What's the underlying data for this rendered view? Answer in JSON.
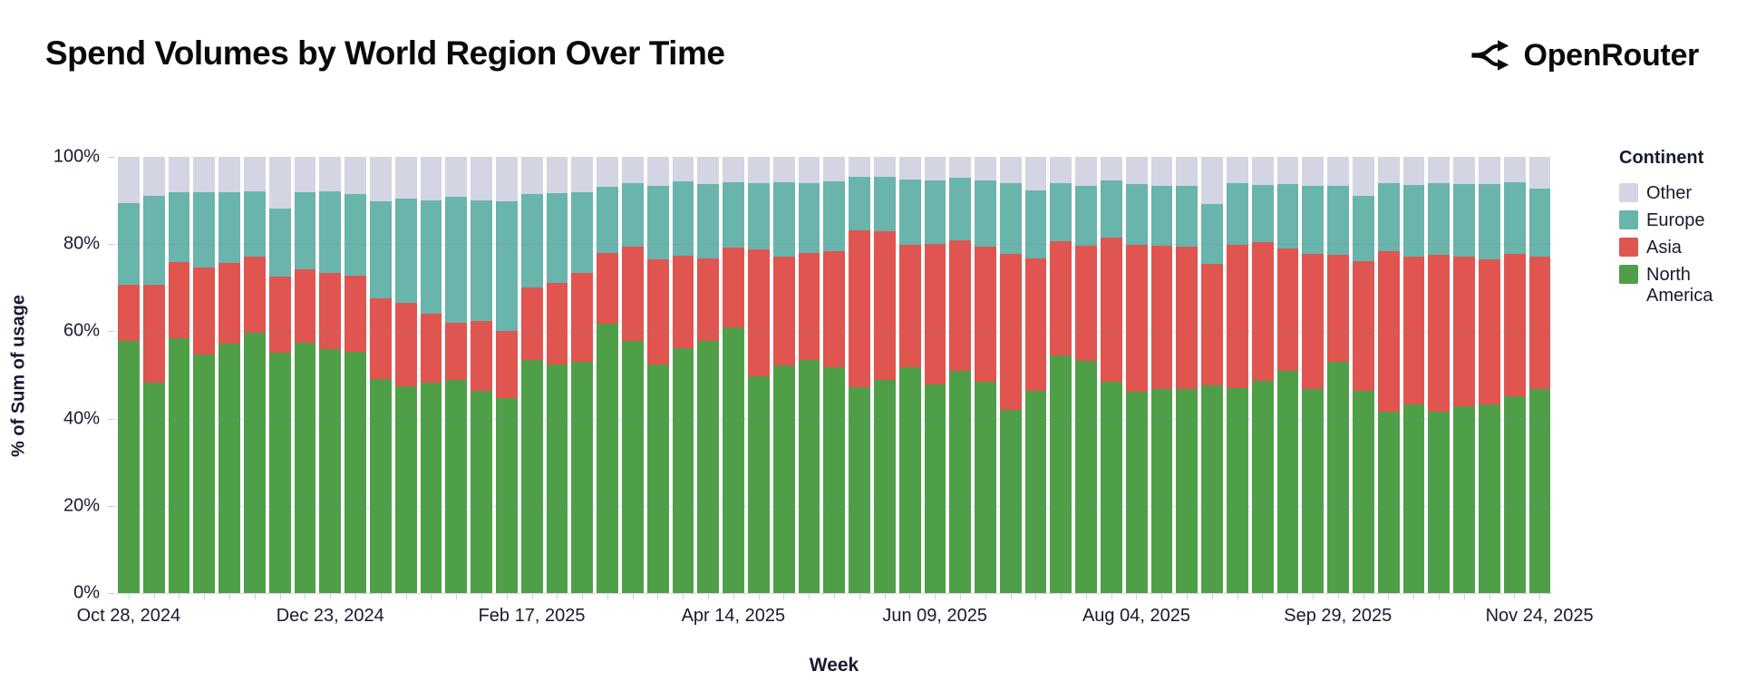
{
  "header": {
    "title": "Spend Volumes by World Region Over Time",
    "brand": "OpenRouter"
  },
  "axes": {
    "x_title": "Week",
    "y_title": "% of Sum of usage"
  },
  "legend": {
    "title": "Continent",
    "items": [
      {
        "label": "Other",
        "color": "#d3d5e2"
      },
      {
        "label": "Europe",
        "color": "#69b4ab"
      },
      {
        "label": "Asia",
        "color": "#e0554f"
      },
      {
        "label": "North America",
        "color": "#4f9f49"
      }
    ]
  },
  "chart_data": {
    "type": "bar",
    "subtype": "stacked-100-percent",
    "title": "Spend Volumes by World Region Over Time",
    "xlabel": "Week",
    "ylabel": "% of Sum of usage",
    "ylim": [
      0,
      100
    ],
    "y_ticks": [
      {
        "value": 100,
        "label": "100%"
      },
      {
        "value": 80,
        "label": "80%"
      },
      {
        "value": 60,
        "label": "60%"
      },
      {
        "value": 40,
        "label": "40%"
      },
      {
        "value": 20,
        "label": "20%"
      },
      {
        "value": 0,
        "label": "0%"
      }
    ],
    "x_tick_indices": [
      0,
      8,
      16,
      24,
      32,
      40,
      48,
      56
    ],
    "x_tick_labels": [
      "Oct 28, 2024",
      "Dec 23, 2024",
      "Feb 17, 2025",
      "Apr 14, 2025",
      "Jun 09, 2025",
      "Aug 04, 2025",
      "Sep 29, 2025",
      "Nov 24, 2025"
    ],
    "categories": [
      "Oct 28, 2024",
      "Nov 04, 2024",
      "Nov 11, 2024",
      "Nov 18, 2024",
      "Nov 25, 2024",
      "Dec 02, 2024",
      "Dec 09, 2024",
      "Dec 16, 2024",
      "Dec 23, 2024",
      "Dec 30, 2024",
      "Jan 06, 2025",
      "Jan 13, 2025",
      "Jan 20, 2025",
      "Jan 27, 2025",
      "Feb 03, 2025",
      "Feb 10, 2025",
      "Feb 17, 2025",
      "Feb 24, 2025",
      "Mar 03, 2025",
      "Mar 10, 2025",
      "Mar 17, 2025",
      "Mar 24, 2025",
      "Mar 31, 2025",
      "Apr 07, 2025",
      "Apr 14, 2025",
      "Apr 21, 2025",
      "Apr 28, 2025",
      "May 05, 2025",
      "May 12, 2025",
      "May 19, 2025",
      "May 26, 2025",
      "Jun 02, 2025",
      "Jun 09, 2025",
      "Jun 16, 2025",
      "Jun 23, 2025",
      "Jun 30, 2025",
      "Jul 07, 2025",
      "Jul 14, 2025",
      "Jul 21, 2025",
      "Jul 28, 2025",
      "Aug 04, 2025",
      "Aug 11, 2025",
      "Aug 18, 2025",
      "Aug 25, 2025",
      "Sep 01, 2025",
      "Sep 08, 2025",
      "Sep 15, 2025",
      "Sep 22, 2025",
      "Sep 29, 2025",
      "Oct 06, 2025",
      "Oct 13, 2025",
      "Oct 20, 2025",
      "Oct 27, 2025",
      "Nov 03, 2025",
      "Nov 10, 2025",
      "Nov 17, 2025",
      "Nov 24, 2025"
    ],
    "stack_order_bottom_to_top": [
      "North America",
      "Asia",
      "Europe",
      "Other"
    ],
    "series": [
      {
        "name": "North America",
        "color": "#4f9f49",
        "values": [
          57.8,
          48.3,
          58.5,
          54.7,
          57.1,
          59.7,
          55.0,
          57.3,
          55.9,
          55.4,
          49.0,
          47.4,
          48.3,
          48.8,
          46.4,
          44.7,
          53.5,
          52.4,
          53.1,
          61.8,
          57.7,
          52.3,
          56.1,
          57.8,
          60.9,
          49.7,
          52.1,
          53.5,
          51.7,
          47.2,
          48.8,
          51.7,
          47.9,
          50.9,
          48.5,
          41.9,
          46.4,
          54.4,
          53.3,
          48.5,
          46.1,
          46.8,
          46.8,
          47.6,
          46.9,
          48.6,
          51.0,
          46.8,
          53.0,
          46.4,
          41.6,
          43.3,
          41.6,
          42.9,
          43.3,
          45.2,
          46.8
        ]
      },
      {
        "name": "Asia",
        "color": "#e0554f",
        "values": [
          12.8,
          22.3,
          17.4,
          19.9,
          18.6,
          17.5,
          17.5,
          17.0,
          17.5,
          17.3,
          18.5,
          19.1,
          15.7,
          13.2,
          16.0,
          15.3,
          16.6,
          18.7,
          20.3,
          16.1,
          21.7,
          24.2,
          21.2,
          19.0,
          18.4,
          29.2,
          25.1,
          24.5,
          26.6,
          36.0,
          34.2,
          28.1,
          32.1,
          29.9,
          30.9,
          35.8,
          30.4,
          26.2,
          26.3,
          33.0,
          33.8,
          32.9,
          32.6,
          27.9,
          33.0,
          31.8,
          28.0,
          30.9,
          24.5,
          29.7,
          36.8,
          33.9,
          35.9,
          34.3,
          33.2,
          32.5,
          30.4
        ]
      },
      {
        "name": "Europe",
        "color": "#69b4ab",
        "values": [
          18.9,
          20.5,
          15.9,
          17.4,
          16.3,
          14.8,
          15.6,
          17.5,
          18.8,
          18.7,
          22.3,
          24.0,
          26.1,
          28.8,
          27.7,
          29.8,
          21.3,
          20.6,
          18.6,
          15.3,
          14.6,
          16.9,
          17.0,
          17.0,
          14.8,
          15.0,
          16.9,
          15.9,
          16.0,
          12.3,
          12.5,
          15.0,
          14.5,
          14.5,
          15.1,
          16.2,
          15.6,
          13.3,
          13.8,
          13.1,
          13.9,
          13.7,
          14.0,
          13.6,
          14.0,
          13.2,
          14.8,
          15.7,
          15.9,
          14.9,
          15.5,
          16.4,
          16.4,
          16.6,
          17.3,
          16.4,
          15.5
        ]
      },
      {
        "name": "Other",
        "color": "#d3d5e2",
        "values": [
          10.5,
          8.9,
          8.2,
          8.0,
          8.0,
          8.0,
          11.9,
          8.2,
          7.8,
          8.6,
          10.2,
          9.5,
          9.9,
          9.2,
          9.9,
          10.2,
          8.6,
          8.3,
          8.0,
          6.8,
          6.0,
          6.6,
          5.7,
          6.2,
          5.9,
          6.1,
          5.9,
          6.1,
          5.7,
          4.5,
          4.5,
          5.2,
          5.5,
          4.7,
          5.5,
          6.1,
          7.6,
          6.1,
          6.6,
          5.4,
          6.2,
          6.6,
          6.6,
          10.9,
          6.1,
          6.4,
          6.2,
          6.6,
          6.6,
          9.0,
          6.1,
          6.4,
          6.1,
          6.2,
          6.2,
          5.9,
          7.3
        ]
      }
    ],
    "legend_position": "right",
    "grid": true
  }
}
